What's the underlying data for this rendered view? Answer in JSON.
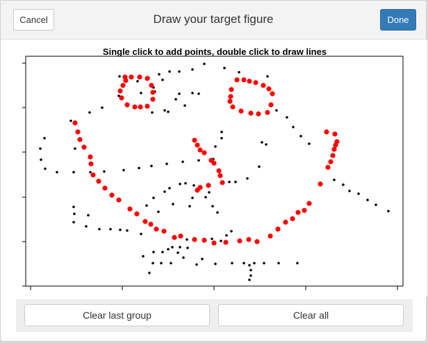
{
  "header": {
    "title": "Draw your target figure",
    "cancel_label": "Cancel",
    "done_label": "Done"
  },
  "plot": {
    "instruction": "Single click to add points, double click to draw lines"
  },
  "footer": {
    "clear_last_label": "Clear last group",
    "clear_all_label": "Clear all"
  },
  "colors": {
    "accent": "#337ab7",
    "group_point": "#ff0000",
    "background_point": "#000000"
  }
}
